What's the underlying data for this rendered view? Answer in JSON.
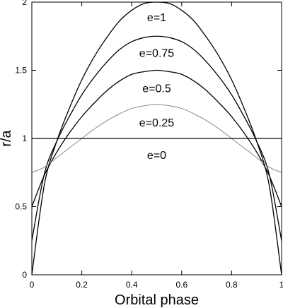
{
  "chart_data": {
    "type": "line",
    "title": "",
    "xlabel": "Orbital phase",
    "ylabel": "r/a",
    "xlim": [
      0,
      1
    ],
    "ylim": [
      0,
      2
    ],
    "xticks": [
      0,
      0.2,
      0.4,
      0.6,
      0.8,
      1
    ],
    "xtick_labels": [
      "0",
      "0.2",
      "0.4",
      "0.6",
      "0.8",
      "1"
    ],
    "yticks": [
      0,
      0.5,
      1,
      1.5,
      2
    ],
    "ytick_labels": [
      "0",
      "0.5",
      "1",
      "1.5",
      "2"
    ],
    "grid": false,
    "legend": "none",
    "x": [
      0,
      0.05,
      0.1,
      0.15,
      0.2,
      0.25,
      0.3,
      0.35,
      0.4,
      0.45,
      0.5,
      0.55,
      0.6,
      0.65,
      0.7,
      0.75,
      0.8,
      0.85,
      0.9,
      0.95,
      1
    ],
    "series": [
      {
        "name": "e=1",
        "color": "#000000",
        "values": [
          0,
          0.66,
          0.98,
          1.22,
          1.43,
          1.6,
          1.74,
          1.86,
          1.94,
          1.99,
          2.0,
          1.99,
          1.94,
          1.86,
          1.74,
          1.6,
          1.43,
          1.22,
          0.98,
          0.66,
          0
        ]
      },
      {
        "name": "e=0.75",
        "color": "#000000",
        "values": [
          0.25,
          0.74,
          0.98,
          1.16,
          1.32,
          1.45,
          1.56,
          1.65,
          1.71,
          1.74,
          1.75,
          1.74,
          1.71,
          1.65,
          1.56,
          1.45,
          1.32,
          1.16,
          0.98,
          0.74,
          0.25
        ]
      },
      {
        "name": "e=0.5",
        "color": "#000000",
        "values": [
          0.5,
          0.73,
          0.9,
          1.04,
          1.16,
          1.26,
          1.35,
          1.42,
          1.47,
          1.49,
          1.5,
          1.49,
          1.47,
          1.42,
          1.35,
          1.26,
          1.16,
          1.04,
          0.9,
          0.73,
          0.5
        ]
      },
      {
        "name": "e=0.25",
        "color": "#888888",
        "values": [
          0.75,
          0.79,
          0.86,
          0.93,
          1.0,
          1.07,
          1.13,
          1.18,
          1.22,
          1.24,
          1.25,
          1.24,
          1.22,
          1.18,
          1.13,
          1.07,
          1.0,
          0.93,
          0.86,
          0.79,
          0.75
        ]
      },
      {
        "name": "e=0",
        "color": "#000000",
        "values": [
          1,
          1,
          1,
          1,
          1,
          1,
          1,
          1,
          1,
          1,
          1,
          1,
          1,
          1,
          1,
          1,
          1,
          1,
          1,
          1,
          1
        ]
      }
    ],
    "curve_labels": [
      {
        "text": "e=1",
        "x": 0.5,
        "y": 1.89
      },
      {
        "text": "e=0.75",
        "x": 0.5,
        "y": 1.63
      },
      {
        "text": "e=0.5",
        "x": 0.5,
        "y": 1.37
      },
      {
        "text": "e=0.25",
        "x": 0.5,
        "y": 1.12
      },
      {
        "text": "e=0",
        "x": 0.5,
        "y": 0.88
      }
    ]
  }
}
